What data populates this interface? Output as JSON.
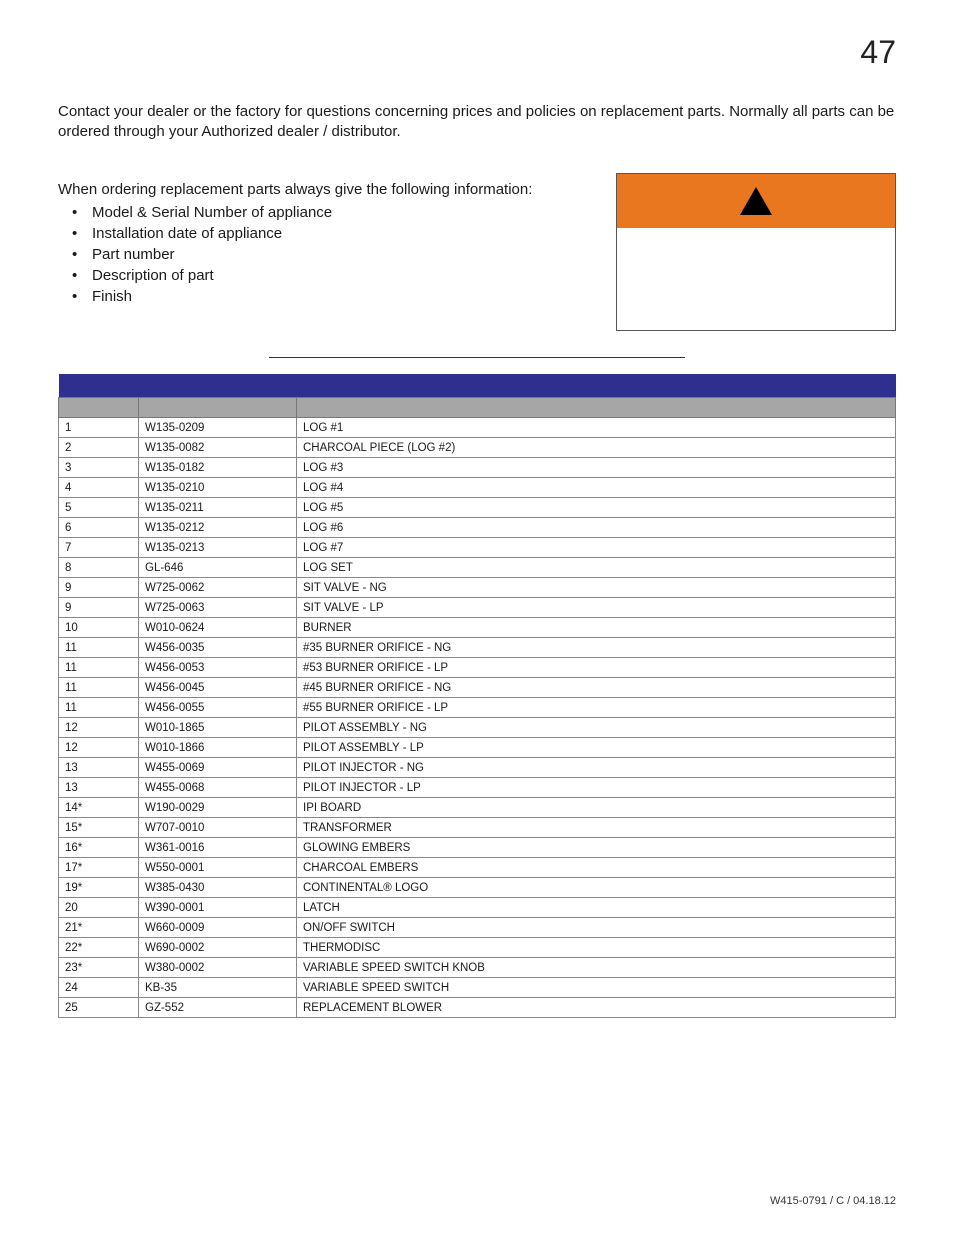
{
  "page_number": "47",
  "intro_text": "Contact your dealer or the factory for questions concerning prices and policies on replacement parts. Normally all parts can be ordered through your Authorized dealer / distributor.",
  "ordering_text": "When ordering replacement parts always give the following information:",
  "bullets": [
    "Model & Serial Number of appliance",
    "Installation date of appliance",
    "Part number",
    "Description of part",
    "Finish"
  ],
  "warning_header_bg": "#e8771f",
  "table_title_bg": "#2f2f8f",
  "table": {
    "columns": [
      "",
      "",
      ""
    ],
    "rows": [
      [
        "1",
        "W135-0209",
        "LOG #1"
      ],
      [
        "2",
        "W135-0082",
        "CHARCOAL PIECE (LOG #2)"
      ],
      [
        "3",
        "W135-0182",
        "LOG #3"
      ],
      [
        "4",
        "W135-0210",
        "LOG #4"
      ],
      [
        "5",
        "W135-0211",
        "LOG #5"
      ],
      [
        "6",
        "W135-0212",
        "LOG #6"
      ],
      [
        "7",
        "W135-0213",
        "LOG #7"
      ],
      [
        "8",
        "GL-646",
        "LOG SET"
      ],
      [
        "9",
        "W725-0062",
        "SIT VALVE - NG"
      ],
      [
        "9",
        "W725-0063",
        "SIT VALVE - LP"
      ],
      [
        "10",
        "W010-0624",
        "BURNER"
      ],
      [
        "11",
        "W456-0035",
        "#35 BURNER ORIFICE - NG"
      ],
      [
        "11",
        "W456-0053",
        "#53 BURNER ORIFICE - LP"
      ],
      [
        "11",
        "W456-0045",
        "#45 BURNER ORIFICE - NG"
      ],
      [
        "11",
        "W456-0055",
        "#55 BURNER ORIFICE - LP"
      ],
      [
        "12",
        "W010-1865",
        "PILOT ASSEMBLY - NG"
      ],
      [
        "12",
        "W010-1866",
        "PILOT ASSEMBLY - LP"
      ],
      [
        "13",
        "W455-0069",
        "PILOT INJECTOR - NG"
      ],
      [
        "13",
        "W455-0068",
        "PILOT INJECTOR - LP"
      ],
      [
        "14*",
        "W190-0029",
        "IPI BOARD"
      ],
      [
        "15*",
        "W707-0010",
        "TRANSFORMER"
      ],
      [
        "16*",
        "W361-0016",
        "GLOWING EMBERS"
      ],
      [
        "17*",
        "W550-0001",
        "CHARCOAL EMBERS"
      ],
      [
        "19*",
        "W385-0430",
        "CONTINENTAL® LOGO"
      ],
      [
        "20",
        "W390-0001",
        "LATCH"
      ],
      [
        "21*",
        "W660-0009",
        "ON/OFF SWITCH"
      ],
      [
        "22*",
        "W690-0002",
        "THERMODISC"
      ],
      [
        "23*",
        "W380-0002",
        "VARIABLE SPEED SWITCH KNOB"
      ],
      [
        "24",
        "KB-35",
        "VARIABLE SPEED SWITCH"
      ],
      [
        "25",
        "GZ-552",
        "REPLACEMENT BLOWER"
      ]
    ]
  },
  "footer": "W415-0791 / C / 04.18.12"
}
